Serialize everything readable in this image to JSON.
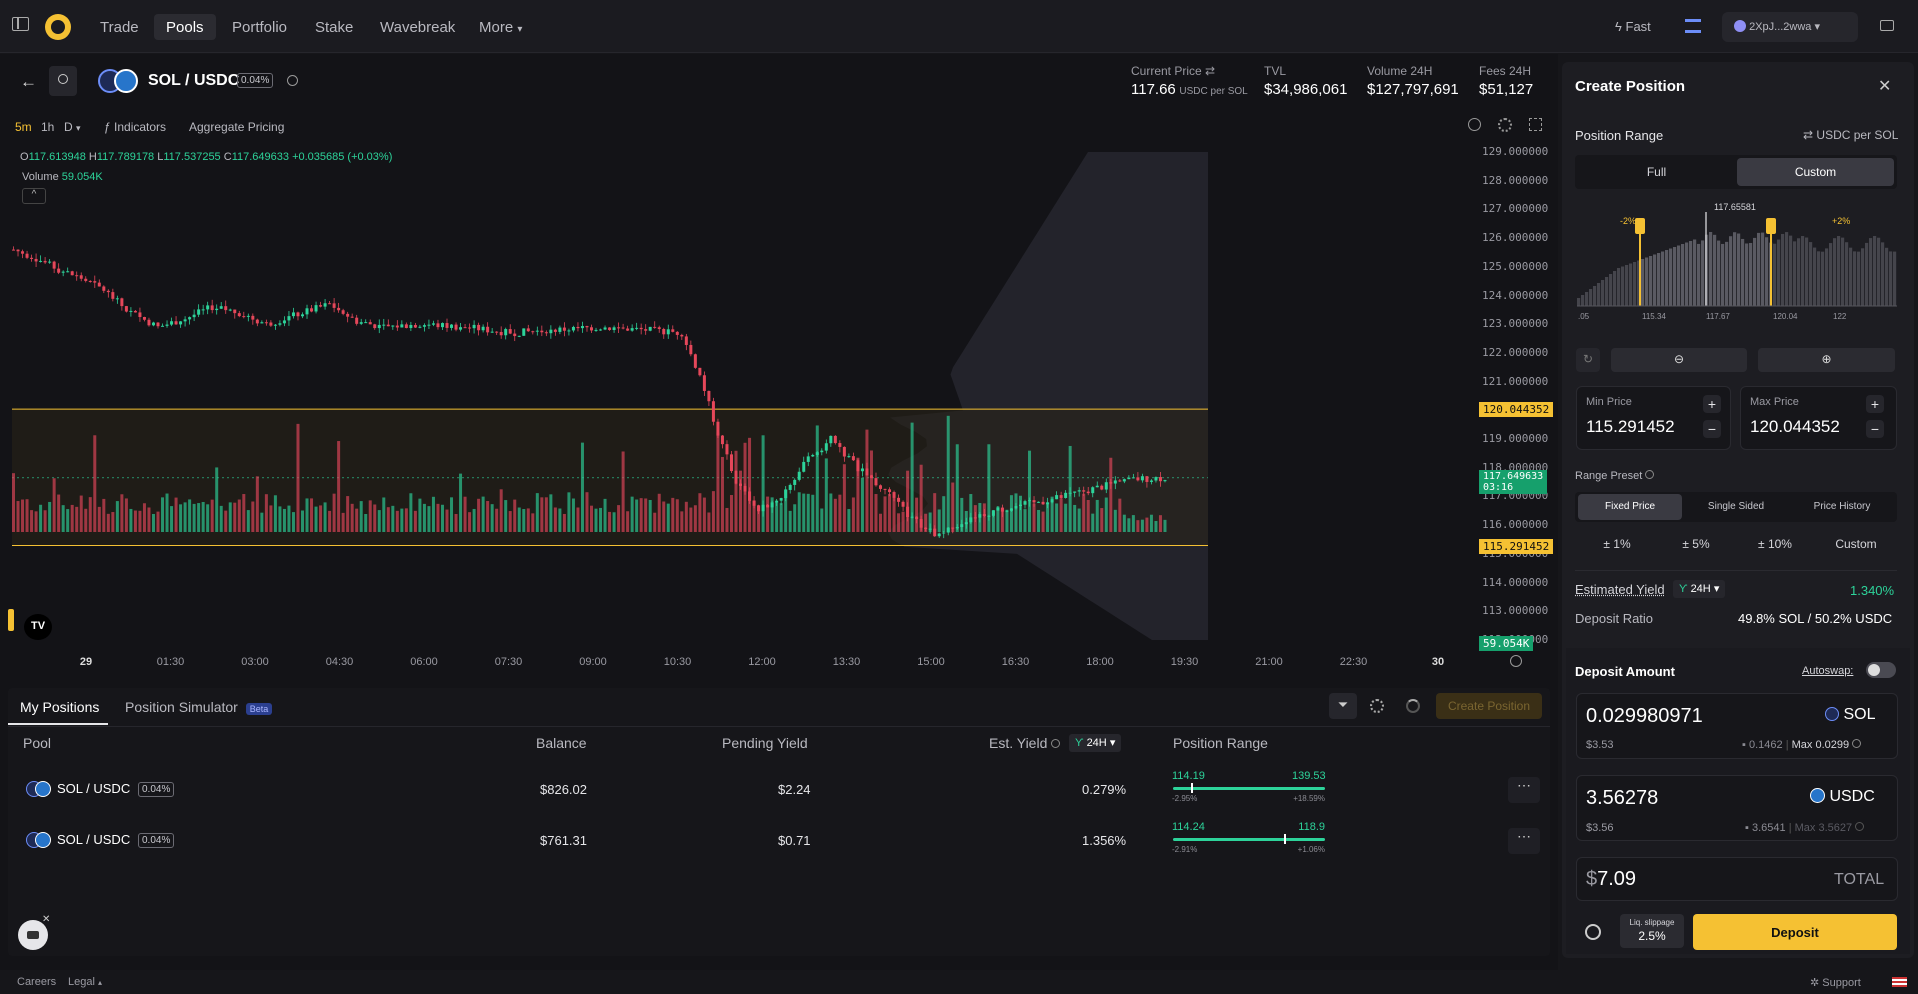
{
  "nav": {
    "items": [
      "Trade",
      "Pools",
      "Portfolio",
      "Stake",
      "Wavebreak",
      "More"
    ],
    "active": "Pools",
    "fast": "Fast",
    "wallet": "2XpJ...2wwa"
  },
  "pair": {
    "name": "SOL / USDC",
    "fee": "0.04%"
  },
  "stats": {
    "current_price_label": "Current Price",
    "current_price": "117.66",
    "current_price_unit": "USDC per SOL",
    "tvl_label": "TVL",
    "tvl": "$34,986,061",
    "volume_label": "Volume 24H",
    "volume": "$127,797,691",
    "fees_label": "Fees 24H",
    "fees": "$51,127"
  },
  "toolbar": {
    "tf_5m": "5m",
    "tf_1h": "1h",
    "tf_d": "D",
    "indicators": "Indicators",
    "aggregate": "Aggregate Pricing"
  },
  "ohlc": {
    "o": "117.613948",
    "h": "117.789178",
    "l": "117.537255",
    "c": "117.649633",
    "chg": "+0.035685 (+0.03%)",
    "volume_label": "Volume",
    "volume": "59.054K"
  },
  "chart_data": {
    "type": "candlestick",
    "x_ticks": [
      "29",
      "01:30",
      "03:00",
      "04:30",
      "06:00",
      "07:30",
      "09:00",
      "10:30",
      "12:00",
      "13:30",
      "15:00",
      "16:30",
      "18:00",
      "19:30",
      "21:00",
      "22:30",
      "30"
    ],
    "y_ticks": [
      "129.000000",
      "128.000000",
      "127.000000",
      "126.000000",
      "125.000000",
      "124.000000",
      "123.000000",
      "122.000000",
      "121.000000",
      "120.000000",
      "119.000000",
      "118.000000",
      "117.000000",
      "116.000000",
      "115.000000",
      "114.000000",
      "113.000000",
      "112.000000"
    ],
    "ylim": [
      112,
      129
    ],
    "close_path": [
      {
        "t": 0,
        "p": 125.6
      },
      {
        "t": 5,
        "p": 125.3
      },
      {
        "t": 10,
        "p": 124.9
      },
      {
        "t": 15,
        "p": 124.6
      },
      {
        "t": 20,
        "p": 124.2
      },
      {
        "t": 25,
        "p": 123.5
      },
      {
        "t": 32,
        "p": 122.9
      },
      {
        "t": 38,
        "p": 123.2
      },
      {
        "t": 44,
        "p": 123.6
      },
      {
        "t": 50,
        "p": 123.4
      },
      {
        "t": 56,
        "p": 123.0
      },
      {
        "t": 62,
        "p": 123.3
      },
      {
        "t": 70,
        "p": 123.7
      },
      {
        "t": 76,
        "p": 123.1
      },
      {
        "t": 82,
        "p": 122.9
      },
      {
        "t": 90,
        "p": 123.0
      },
      {
        "t": 100,
        "p": 122.9
      },
      {
        "t": 110,
        "p": 122.7
      },
      {
        "t": 120,
        "p": 122.8
      },
      {
        "t": 130,
        "p": 122.9
      },
      {
        "t": 140,
        "p": 122.8
      },
      {
        "t": 148,
        "p": 122.7
      },
      {
        "t": 152,
        "p": 121.2
      },
      {
        "t": 156,
        "p": 119.2
      },
      {
        "t": 160,
        "p": 117.5
      },
      {
        "t": 165,
        "p": 116.5
      },
      {
        "t": 170,
        "p": 117.0
      },
      {
        "t": 176,
        "p": 118.3
      },
      {
        "t": 181,
        "p": 119.0
      },
      {
        "t": 187,
        "p": 118.0
      },
      {
        "t": 193,
        "p": 117.2
      },
      {
        "t": 199,
        "p": 116.2
      },
      {
        "t": 205,
        "p": 115.6
      },
      {
        "t": 212,
        "p": 116.3
      },
      {
        "t": 220,
        "p": 116.6
      },
      {
        "t": 230,
        "p": 116.9
      },
      {
        "t": 240,
        "p": 117.3
      },
      {
        "t": 248,
        "p": 117.6
      },
      {
        "t": 255,
        "p": 117.65
      }
    ],
    "range_lines": [
      {
        "label": "120.044352",
        "value": 120.044352
      },
      {
        "label": "115.291452",
        "value": 115.291452
      }
    ],
    "last_price_label": "117.649633",
    "last_price_timer": "03:16",
    "last_volume_label": "59.054K"
  },
  "positions": {
    "tab_my": "My Positions",
    "tab_sim": "Position Simulator",
    "beta": "Beta",
    "create": "Create Position",
    "headers": {
      "pool": "Pool",
      "balance": "Balance",
      "pending": "Pending Yield",
      "est": "Est. Yield",
      "period": "24H",
      "range": "Position Range"
    },
    "rows": [
      {
        "pool": "SOL / USDC",
        "fee": "0.04%",
        "balance": "$826.02",
        "pending": "$2.24",
        "est": "0.279%",
        "low": "114.19",
        "high": "139.53",
        "low_pct": "-2.95%",
        "high_pct": "+18.59%",
        "marker": 0.12
      },
      {
        "pool": "SOL / USDC",
        "fee": "0.04%",
        "balance": "$761.31",
        "pending": "$0.71",
        "est": "1.356%",
        "low": "114.24",
        "high": "118.9",
        "low_pct": "-2.91%",
        "high_pct": "+1.06%",
        "marker": 0.73
      }
    ]
  },
  "panel": {
    "title": "Create Position",
    "range_label": "Position Range",
    "unit_toggle": "USDC per SOL",
    "full": "Full",
    "custom": "Custom",
    "hist": {
      "center": "117.65581",
      "left_pct": "-2%",
      "right_pct": "+2%",
      "ticks": [
        ".05",
        "115.34",
        "117.67",
        "120.04",
        "122"
      ]
    },
    "min_label": "Min Price",
    "min": "115.291452",
    "max_label": "Max Price",
    "max": "120.044352",
    "preset_label": "Range Preset",
    "presets": [
      "Fixed Price",
      "Single Sided",
      "Price History"
    ],
    "pcts": [
      "± 1%",
      "± 5%",
      "± 10%",
      "Custom"
    ],
    "est_yield_label": "Estimated Yield",
    "est_period": "24H",
    "est_yield": "1.340%",
    "ratio_label": "Deposit Ratio",
    "ratio": "49.8% SOL / 50.2% USDC",
    "deposit_label": "Deposit Amount",
    "autoswap": "Autoswap:",
    "sol_amount": "0.029980971",
    "sol_token": "SOL",
    "sol_usd": "$3.53",
    "sol_bal": "0.1462",
    "sol_max": "Max 0.0299",
    "usdc_amount": "3.56278",
    "usdc_token": "USDC",
    "usdc_usd": "$3.56",
    "usdc_bal": "3.6541",
    "usdc_max": "Max 3.5627",
    "total_sym": "$",
    "total": "7.09",
    "total_label": "TOTAL",
    "slip_label": "Liq. slippage",
    "slip": "2.5%",
    "deposit_btn": "Deposit"
  },
  "footer": {
    "careers": "Careers",
    "legal": "Legal",
    "support": "Support"
  },
  "colors": {
    "accent": "#f5c133",
    "up": "#2dd39a",
    "down": "#e5475a"
  }
}
